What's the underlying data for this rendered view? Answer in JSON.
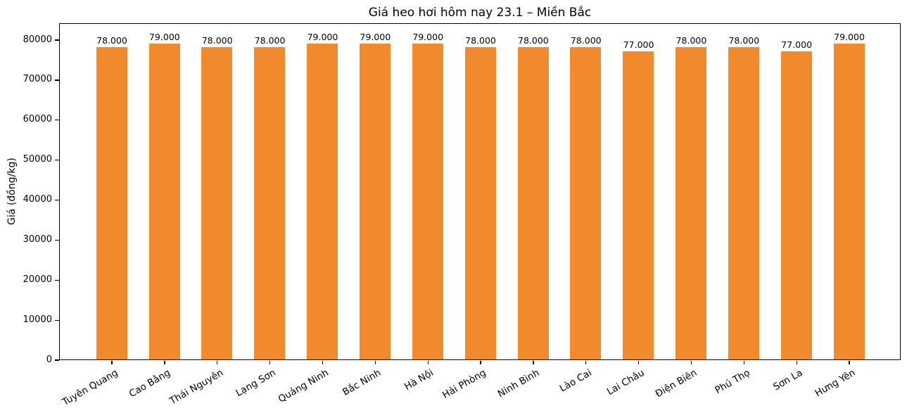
{
  "chart_data": {
    "type": "bar",
    "title": "Giá heo hơi hôm nay 23.1 – Miền Bắc",
    "xlabel": "",
    "ylabel": "Giá (đồng/kg)",
    "categories": [
      "Tuyên Quang",
      "Cao Bằng",
      "Thái Nguyên",
      "Lạng Sơn",
      "Quảng Ninh",
      "Bắc Ninh",
      "Hà Nội",
      "Hải Phòng",
      "Ninh Bình",
      "Lào Cai",
      "Lai Châu",
      "Điện Biên",
      "Phú Thọ",
      "Sơn La",
      "Hưng Yên"
    ],
    "values": [
      78000,
      79000,
      78000,
      78000,
      79000,
      79000,
      79000,
      78000,
      78000,
      78000,
      77000,
      78000,
      78000,
      77000,
      79000
    ],
    "value_labels": [
      "78.000",
      "79.000",
      "78.000",
      "78.000",
      "79.000",
      "79.000",
      "79.000",
      "78.000",
      "78.000",
      "78.000",
      "77.000",
      "78.000",
      "78.000",
      "77.000",
      "79.000"
    ],
    "yticks": [
      0,
      10000,
      20000,
      30000,
      40000,
      50000,
      60000,
      70000,
      80000
    ],
    "ytick_labels": [
      "0",
      "10000",
      "20000",
      "30000",
      "40000",
      "50000",
      "60000",
      "70000",
      "80000"
    ],
    "ylim": [
      0,
      84220
    ],
    "bar_color": "#f08a2d",
    "grid": false,
    "legend": null,
    "xtick_rotation_deg": 30
  }
}
